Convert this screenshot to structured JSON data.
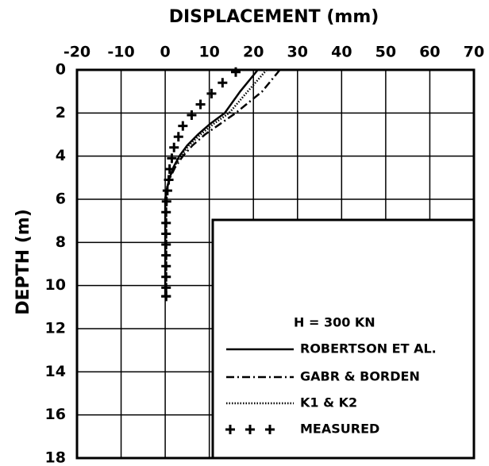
{
  "chart_data": {
    "type": "line",
    "xlabel": "DISPLACEMENT (mm)",
    "ylabel": "DEPTH (m)",
    "annotation": "H = 300 KN",
    "xlim": [
      -20,
      70
    ],
    "xticks": [
      -20,
      -10,
      0,
      10,
      20,
      30,
      40,
      50,
      60,
      70
    ],
    "ylim": [
      0,
      18
    ],
    "yticks": [
      0,
      2,
      4,
      6,
      8,
      10,
      12,
      14,
      16,
      18
    ],
    "y_inverted": true,
    "x_axis_position": "top",
    "grid": true,
    "legend": "lower right",
    "series": [
      {
        "name": "ROBERTSON ET AL.",
        "color": "#000000",
        "style": "solid",
        "x": [
          21,
          17,
          13.5,
          10.2,
          7.4,
          5,
          3.2,
          1.9,
          1,
          0.4,
          0,
          0,
          0,
          0,
          0,
          0
        ],
        "y": [
          0,
          1,
          2,
          2.5,
          3,
          3.5,
          4,
          4.5,
          5,
          5.5,
          6,
          7,
          8,
          9,
          10,
          10.5
        ]
      },
      {
        "name": "GABR & BORDEN",
        "color": "#000000",
        "style": "dashdot",
        "x": [
          26,
          22,
          16,
          12.5,
          9,
          6.2,
          4,
          2.3,
          1.1,
          0.4,
          0
        ],
        "y": [
          0,
          1,
          2,
          2.5,
          3,
          3.5,
          4,
          4.5,
          5,
          5.5,
          6
        ]
      },
      {
        "name": "K1 & K2",
        "color": "#000000",
        "style": "dotted",
        "x": [
          23,
          18.7,
          14.5,
          11,
          8,
          5.4,
          3.5,
          2,
          1,
          0.4,
          0
        ],
        "y": [
          0,
          1,
          2,
          2.5,
          3,
          3.5,
          4,
          4.5,
          5,
          5.5,
          6
        ]
      },
      {
        "name": "MEASURED",
        "color": "#000000",
        "style": "marker",
        "x": [
          16,
          13,
          10.5,
          8,
          6,
          4,
          3,
          2,
          1.5,
          1,
          0.8,
          0.5,
          0.3,
          0.2,
          0.2,
          0.2,
          0.2,
          0.2,
          0.2,
          0.2,
          0.2,
          0.2,
          0.2
        ],
        "y": [
          0.1,
          0.6,
          1.1,
          1.6,
          2.1,
          2.6,
          3.1,
          3.6,
          4.1,
          4.6,
          5.1,
          5.6,
          6.1,
          6.6,
          7.1,
          7.6,
          8.1,
          8.6,
          9.1,
          9.6,
          10.1,
          10.5,
          10.5
        ]
      }
    ]
  }
}
